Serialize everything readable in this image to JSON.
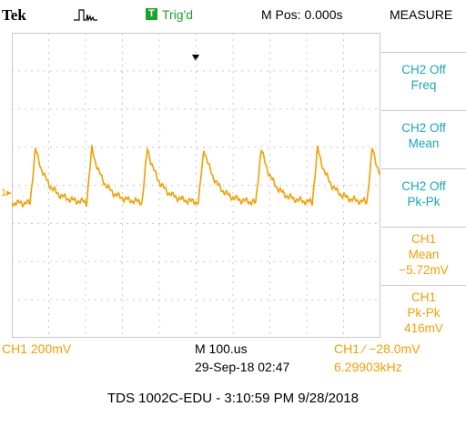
{
  "header": {
    "brand": "Tek",
    "trigger_badge": "T",
    "trigger_status": "Trig'd",
    "m_pos": "M Pos: 0.000s",
    "measure_title": "MEASURE"
  },
  "measurements": [
    {
      "line1": "CH2 Off",
      "line2": "Freq",
      "color": "#17a7bd"
    },
    {
      "line1": "CH2 Off",
      "line2": "Mean",
      "color": "#17a7bd"
    },
    {
      "line1": "CH2 Off",
      "line2": "Pk-Pk",
      "color": "#17a7bd"
    },
    {
      "line1": "CH1",
      "line2": "Mean",
      "line3": "−5.72mV",
      "color": "#f2a000"
    },
    {
      "line1": "CH1",
      "line2": "Pk-Pk",
      "line3": "416mV",
      "color": "#f2a000"
    }
  ],
  "status": {
    "ch1_scale": "CH1  200mV",
    "timebase": "M 100.us",
    "datetime": "29-Sep-18 02:47",
    "trigger": "CH1  ⁄  −28.0mV",
    "frequency": "6.29903kHz"
  },
  "ch1_marker": "1▸",
  "caption": "TDS 1002C-EDU - 3:10:59 PM    9/28/2018",
  "colors": {
    "ch1": "#f2a000",
    "grid": "#c8c8c8",
    "trigger_green": "#1aa52a",
    "cyan": "#17a7bd"
  }
}
